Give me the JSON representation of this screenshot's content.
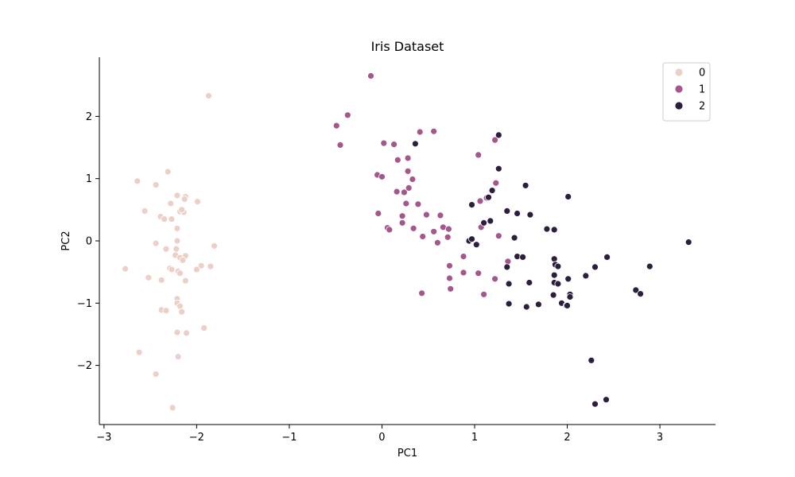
{
  "chart_data": {
    "type": "scatter",
    "title": "Iris Dataset",
    "xlabel": "PC1",
    "ylabel": "PC2",
    "xlim": [
      -3.05,
      3.6
    ],
    "ylim": [
      -2.95,
      2.95
    ],
    "xticks": [
      -3,
      -2,
      -1,
      0,
      1,
      2,
      3
    ],
    "yticks": [
      -2,
      -1,
      0,
      1,
      2
    ],
    "grid": false,
    "legend_position": "top-right",
    "series": [
      {
        "name": "0",
        "color": "#ecd0c7",
        "points": [
          [
            -1.87,
            2.33
          ],
          [
            -2.31,
            1.11
          ],
          [
            -2.64,
            0.96
          ],
          [
            -2.44,
            0.9
          ],
          [
            -2.21,
            0.73
          ],
          [
            -2.12,
            0.71
          ],
          [
            -2.13,
            0.67
          ],
          [
            -2.28,
            0.6
          ],
          [
            -1.99,
            0.63
          ],
          [
            -2.56,
            0.48
          ],
          [
            -2.18,
            0.47
          ],
          [
            -2.14,
            0.46
          ],
          [
            -2.16,
            0.5
          ],
          [
            -2.39,
            0.39
          ],
          [
            -2.35,
            0.35
          ],
          [
            -2.27,
            0.35
          ],
          [
            -2.21,
            0.2
          ],
          [
            -2.21,
            0.0
          ],
          [
            -2.44,
            -0.04
          ],
          [
            -1.81,
            -0.08
          ],
          [
            -2.33,
            -0.13
          ],
          [
            -2.22,
            -0.13
          ],
          [
            -2.12,
            -0.24
          ],
          [
            -2.23,
            -0.23
          ],
          [
            -2.18,
            -0.27
          ],
          [
            -2.15,
            -0.31
          ],
          [
            -1.95,
            -0.4
          ],
          [
            -1.85,
            -0.41
          ],
          [
            -2.0,
            -0.46
          ],
          [
            -2.77,
            -0.45
          ],
          [
            -2.29,
            -0.44
          ],
          [
            -2.27,
            -0.46
          ],
          [
            -2.2,
            -0.49
          ],
          [
            -2.18,
            -0.52
          ],
          [
            -2.52,
            -0.59
          ],
          [
            -2.38,
            -0.63
          ],
          [
            -2.12,
            -0.64
          ],
          [
            -2.21,
            -0.93
          ],
          [
            -2.21,
            -1.0
          ],
          [
            -2.18,
            -1.05
          ],
          [
            -2.38,
            -1.11
          ],
          [
            -2.33,
            -1.12
          ],
          [
            -2.16,
            -1.14
          ],
          [
            -1.92,
            -1.4
          ],
          [
            -2.21,
            -1.47
          ],
          [
            -2.11,
            -1.48
          ],
          [
            -2.62,
            -1.79
          ],
          [
            -2.2,
            -1.86
          ],
          [
            -2.44,
            -2.14
          ],
          [
            -2.26,
            -2.68
          ]
        ]
      },
      {
        "name": "1",
        "color": "#a3578b",
        "points": [
          [
            -0.12,
            2.65
          ],
          [
            -0.37,
            2.02
          ],
          [
            -0.49,
            1.85
          ],
          [
            -0.45,
            1.54
          ],
          [
            0.02,
            1.57
          ],
          [
            0.13,
            1.55
          ],
          [
            0.41,
            1.75
          ],
          [
            0.56,
            1.76
          ],
          [
            1.22,
            1.62
          ],
          [
            0.17,
            1.3
          ],
          [
            0.28,
            1.33
          ],
          [
            1.04,
            1.38
          ],
          [
            -0.05,
            1.06
          ],
          [
            0.0,
            1.03
          ],
          [
            0.28,
            1.12
          ],
          [
            0.33,
            0.99
          ],
          [
            0.16,
            0.79
          ],
          [
            0.24,
            0.78
          ],
          [
            0.29,
            0.85
          ],
          [
            1.23,
            0.93
          ],
          [
            0.26,
            0.6
          ],
          [
            0.39,
            0.59
          ],
          [
            1.06,
            0.64
          ],
          [
            1.13,
            0.69
          ],
          [
            -0.04,
            0.44
          ],
          [
            0.22,
            0.4
          ],
          [
            0.48,
            0.42
          ],
          [
            0.63,
            0.41
          ],
          [
            0.06,
            0.21
          ],
          [
            0.08,
            0.18
          ],
          [
            0.22,
            0.29
          ],
          [
            0.34,
            0.2
          ],
          [
            0.44,
            0.07
          ],
          [
            0.56,
            0.15
          ],
          [
            0.66,
            0.22
          ],
          [
            0.72,
            0.19
          ],
          [
            1.07,
            0.22
          ],
          [
            0.6,
            -0.03
          ],
          [
            0.71,
            0.06
          ],
          [
            1.26,
            0.08
          ],
          [
            0.73,
            -0.4
          ],
          [
            0.73,
            -0.6
          ],
          [
            0.74,
            -0.77
          ],
          [
            0.88,
            -0.25
          ],
          [
            0.88,
            -0.51
          ],
          [
            1.04,
            -0.52
          ],
          [
            1.22,
            -0.61
          ],
          [
            1.36,
            -0.33
          ],
          [
            0.43,
            -0.84
          ],
          [
            1.1,
            -0.86
          ]
        ]
      },
      {
        "name": "2",
        "color": "#2d1e3e",
        "points": [
          [
            1.26,
            1.7
          ],
          [
            0.36,
            1.56
          ],
          [
            1.26,
            1.16
          ],
          [
            1.55,
            0.89
          ],
          [
            2.01,
            0.71
          ],
          [
            1.19,
            0.81
          ],
          [
            1.15,
            0.7
          ],
          [
            0.97,
            0.58
          ],
          [
            1.35,
            0.48
          ],
          [
            1.46,
            0.44
          ],
          [
            1.6,
            0.42
          ],
          [
            1.1,
            0.29
          ],
          [
            1.17,
            0.32
          ],
          [
            1.78,
            0.19
          ],
          [
            1.86,
            0.18
          ],
          [
            1.43,
            0.05
          ],
          [
            0.94,
            0.0
          ],
          [
            0.97,
            0.03
          ],
          [
            1.02,
            -0.06
          ],
          [
            1.46,
            -0.25
          ],
          [
            1.52,
            -0.26
          ],
          [
            1.35,
            -0.42
          ],
          [
            1.86,
            -0.29
          ],
          [
            1.87,
            -0.38
          ],
          [
            1.9,
            -0.41
          ],
          [
            1.86,
            -0.55
          ],
          [
            2.2,
            -0.56
          ],
          [
            2.3,
            -0.42
          ],
          [
            2.43,
            -0.26
          ],
          [
            2.89,
            -0.41
          ],
          [
            1.37,
            -0.69
          ],
          [
            1.59,
            -0.67
          ],
          [
            1.86,
            -0.67
          ],
          [
            1.9,
            -0.69
          ],
          [
            2.01,
            -0.61
          ],
          [
            2.03,
            -0.86
          ],
          [
            2.03,
            -0.9
          ],
          [
            1.85,
            -0.87
          ],
          [
            1.56,
            -1.06
          ],
          [
            1.69,
            -1.02
          ],
          [
            1.94,
            -1.0
          ],
          [
            1.99,
            -1.04
          ],
          [
            1.37,
            -1.01
          ],
          [
            2.74,
            -0.79
          ],
          [
            2.79,
            -0.85
          ],
          [
            3.31,
            -0.02
          ],
          [
            2.26,
            -1.92
          ],
          [
            2.3,
            -2.62
          ],
          [
            2.42,
            -2.55
          ],
          [
            2.0,
            -1.04
          ]
        ]
      }
    ]
  }
}
